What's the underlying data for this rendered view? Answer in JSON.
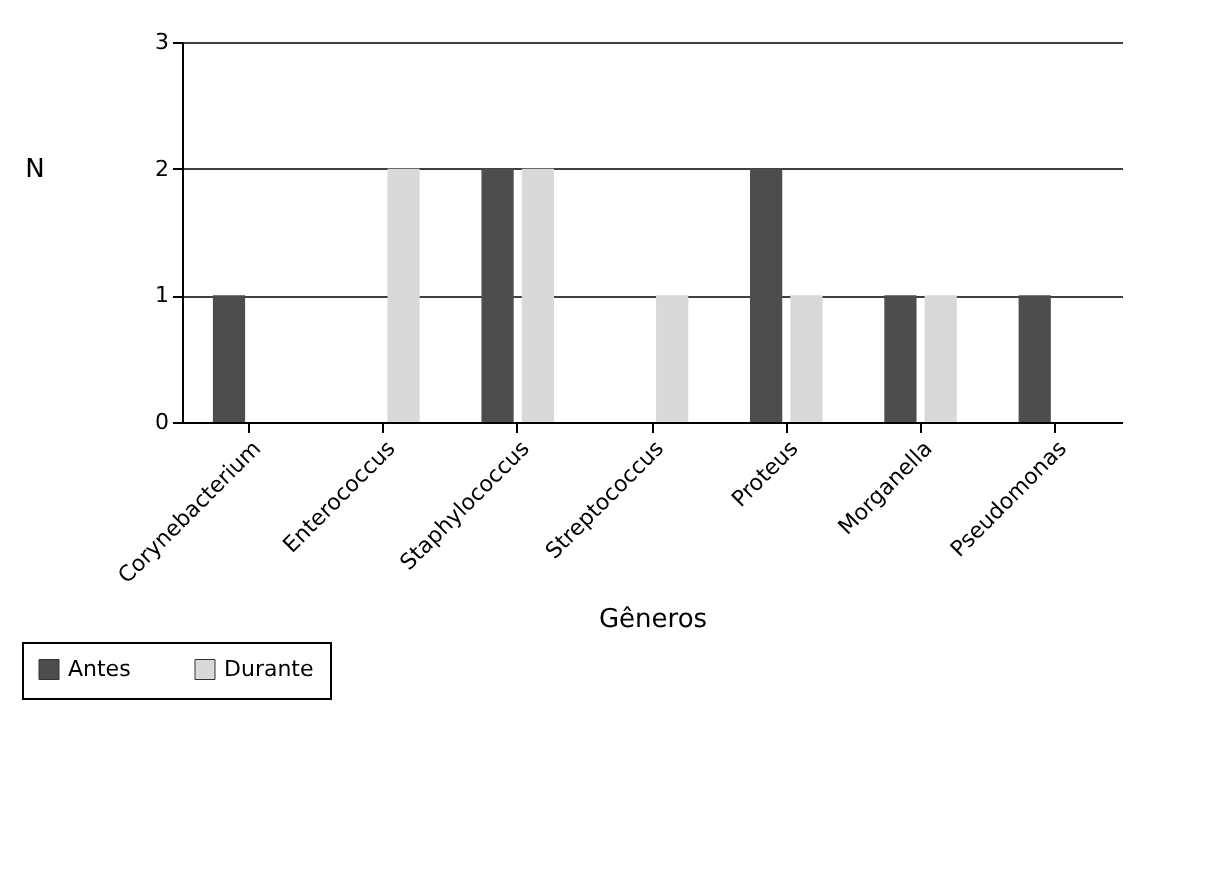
{
  "chart_data": {
    "type": "bar",
    "xlabel": "Gêneros",
    "ylabel": "N",
    "categories": [
      "Corynebacterium",
      "Enterococcus",
      "Staphylococcus",
      "Streptococcus",
      "Proteus",
      "Morganella",
      "Pseudomonas"
    ],
    "series": [
      {
        "name": "Antes",
        "color": "#4d4d4d",
        "values": [
          1,
          0,
          2,
          0,
          2,
          1,
          1
        ]
      },
      {
        "name": "Durante",
        "color": "#d9d9d9",
        "values": [
          0,
          2,
          2,
          1,
          1,
          1,
          0
        ]
      }
    ],
    "ylim": [
      0,
      3
    ],
    "yticks": [
      0,
      1,
      2,
      3
    ],
    "grid": "y",
    "legend": "bottom left"
  }
}
